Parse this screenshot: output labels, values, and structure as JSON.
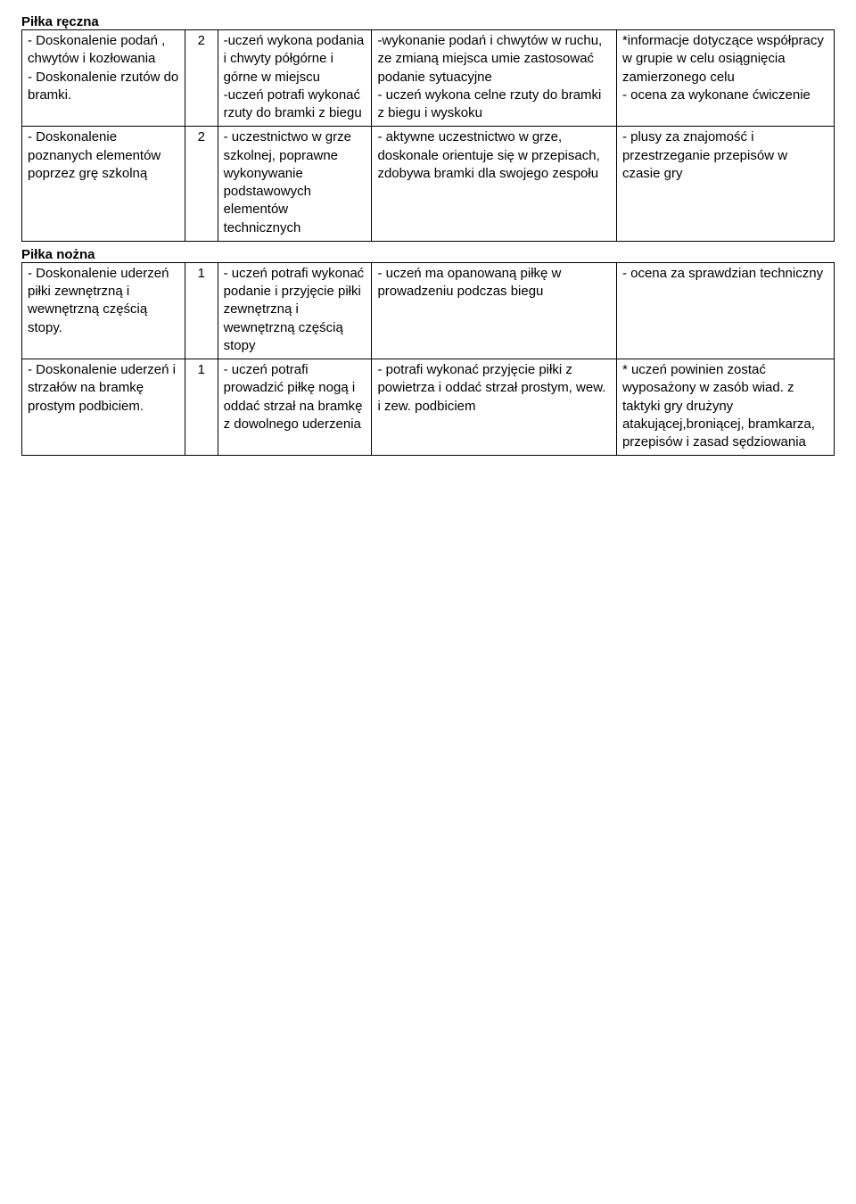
{
  "sections": {
    "handball": {
      "title": "Piłka ręczna",
      "rows": [
        {
          "c1": "- Doskonalenie podań , chwytów i kozłowania\n- Doskonalenie rzutów do bramki.",
          "c2": "2",
          "c3": "-uczeń wykona podania i chwyty półgórne i górne w miejscu\n-uczeń potrafi wykonać rzuty do bramki z biegu",
          "c4": "-wykonanie  podań i chwytów w ruchu, ze zmianą miejsca umie zastosować podanie sytuacyjne\n- uczeń wykona celne rzuty do bramki z biegu    i wyskoku",
          "c5": "*informacje dotyczące współpracy w grupie w celu osiągnięcia zamierzonego celu\n- ocena za wykonane ćwiczenie"
        },
        {
          "c1": "- Doskonalenie poznanych elementów poprzez grę szkolną",
          "c2": "2",
          "c3": "- uczestnictwo w grze szkolnej, poprawne wykonywanie podstawowych elementów technicznych",
          "c4": "- aktywne uczestnictwo w grze, doskonale orientuje się w przepisach, zdobywa bramki dla swojego zespołu",
          "c5": "- plusy za znajomość i przestrzeganie przepisów w czasie gry"
        }
      ]
    },
    "football": {
      "title": "Piłka nożna",
      "rows": [
        {
          "c1": "- Doskonalenie uderzeń piłki zewnętrzną i wewnętrzną częścią stopy.",
          "c2": "1",
          "c3": "- uczeń potrafi wykonać podanie i przyjęcie piłki zewnętrzną i wewnętrzną częścią stopy",
          "c4": "- uczeń ma opanowaną piłkę w prowadzeniu podczas biegu",
          "c5": "- ocena za sprawdzian techniczny"
        },
        {
          "c1": "- Doskonalenie uderzeń i strzałów na bramkę prostym podbiciem.",
          "c2": "1",
          "c3": "- uczeń potrafi prowadzić piłkę nogą i oddać strzał na bramkę z dowolnego uderzenia",
          "c4": "- potrafi wykonać przyjęcie piłki z powietrza i oddać strzał prostym, wew. i zew. podbiciem",
          "c5": "* uczeń powinien zostać wyposażony w zasób wiad. z taktyki gry drużyny atakującej,broniącej, bramkarza, przepisów i zasad sędziowania"
        }
      ]
    }
  }
}
